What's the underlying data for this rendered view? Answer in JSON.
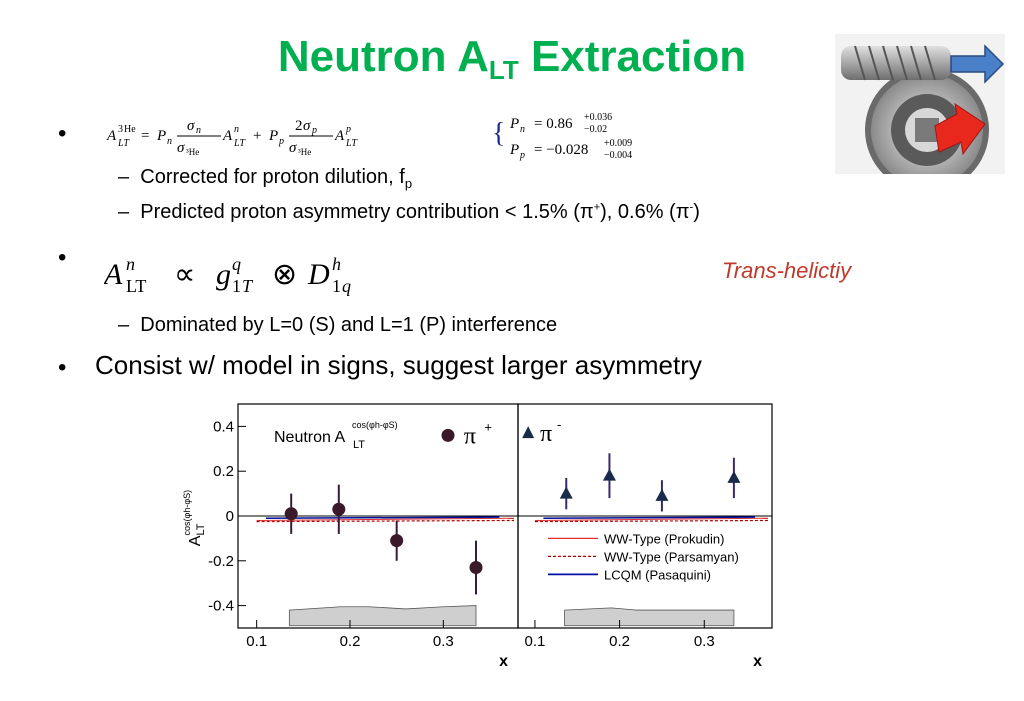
{
  "title": {
    "prefix": "Neutron A",
    "sub": "LT",
    "suffix": " Extraction"
  },
  "bullets": {
    "b1": {
      "bullet": "•",
      "eq_main": "A^{3He}_{LT} = P_n σ_n/σ_{3He} A^n_{LT} + P_p 2σ_p/σ_{3He} A^p_{LT}",
      "pn": "P_n = 0.86 +0.036 −0.02",
      "pp": "P_p = −0.028 +0.009 −0.004",
      "sub1_dash": "–",
      "sub1_prefix": "Corrected for proton dilution, f",
      "sub1_sub": "p",
      "sub2_dash": "–",
      "sub2_a": "Predicted proton asymmetry contribution < 1.5% (π",
      "sub2_sup1": "+",
      "sub2_b": "), 0.6% (π",
      "sub2_sup2": "-",
      "sub2_c": ")"
    },
    "b2": {
      "bullet": "•",
      "eq": "A^n_LT ∝ g^q_1T ⊗ D^h_1q",
      "trans": "Trans-helictiy",
      "sub1_dash": "–",
      "sub1": "Dominated by L=0 (S) and L=1 (P) interference"
    },
    "b3": {
      "bullet": "•",
      "text": "Consist w/ model in signs, suggest larger asymmetry"
    }
  },
  "chart_data": {
    "type": "scatter",
    "ylabel": "A_LT^cos(φh-φS)",
    "xlabel": "x",
    "panels": [
      {
        "name": "left",
        "label": "Neutron A_LT^cos(φh-φS)",
        "legend_symbol": "π+",
        "xlim": [
          0.08,
          0.38
        ],
        "ylim": [
          -0.5,
          0.5
        ],
        "x_ticks": [
          "0.1",
          "0.2",
          "0.3"
        ],
        "y_ticks": [
          "0.4",
          "0.2",
          "0",
          "-0.2",
          "-0.4"
        ],
        "points": [
          {
            "x": 0.137,
            "y": 0.01,
            "err": 0.09
          },
          {
            "x": 0.188,
            "y": 0.03,
            "err": 0.11
          },
          {
            "x": 0.25,
            "y": -0.11,
            "err": 0.09
          },
          {
            "x": 0.335,
            "y": -0.23,
            "err": 0.12
          }
        ],
        "sys_band": [
          [
            0.135,
            -0.42
          ],
          [
            0.19,
            -0.405
          ],
          [
            0.22,
            -0.405
          ],
          [
            0.26,
            -0.415
          ],
          [
            0.3,
            -0.405
          ],
          [
            0.335,
            -0.4
          ]
        ]
      },
      {
        "name": "right",
        "legend_symbol": "π-",
        "xlim": [
          0.08,
          0.38
        ],
        "ylim": [
          -0.5,
          0.5
        ],
        "x_ticks": [
          "0.1",
          "0.2",
          "0.3"
        ],
        "points": [
          {
            "x": 0.137,
            "y": 0.1,
            "err": 0.07
          },
          {
            "x": 0.188,
            "y": 0.18,
            "err": 0.1
          },
          {
            "x": 0.25,
            "y": 0.09,
            "err": 0.07
          },
          {
            "x": 0.335,
            "y": 0.17,
            "err": 0.09
          }
        ],
        "sys_band": [
          [
            0.135,
            -0.42
          ],
          [
            0.19,
            -0.41
          ],
          [
            0.22,
            -0.42
          ],
          [
            0.26,
            -0.42
          ],
          [
            0.3,
            -0.42
          ],
          [
            0.335,
            -0.42
          ]
        ]
      }
    ],
    "model_legend": [
      {
        "name": "WW-Type (Prokudin)",
        "color": "#e03030",
        "style": "solid"
      },
      {
        "name": "WW-Type (Parsamyan)",
        "color": "#b00000",
        "style": "dashed"
      },
      {
        "name": "LCQM (Pasaquini)",
        "color": "#0010a0",
        "style": "solid"
      }
    ],
    "colors": {
      "pi_plus": "#3a1a2a",
      "pi_minus": "#1a2a4a",
      "band": "#cfcfcf"
    }
  }
}
